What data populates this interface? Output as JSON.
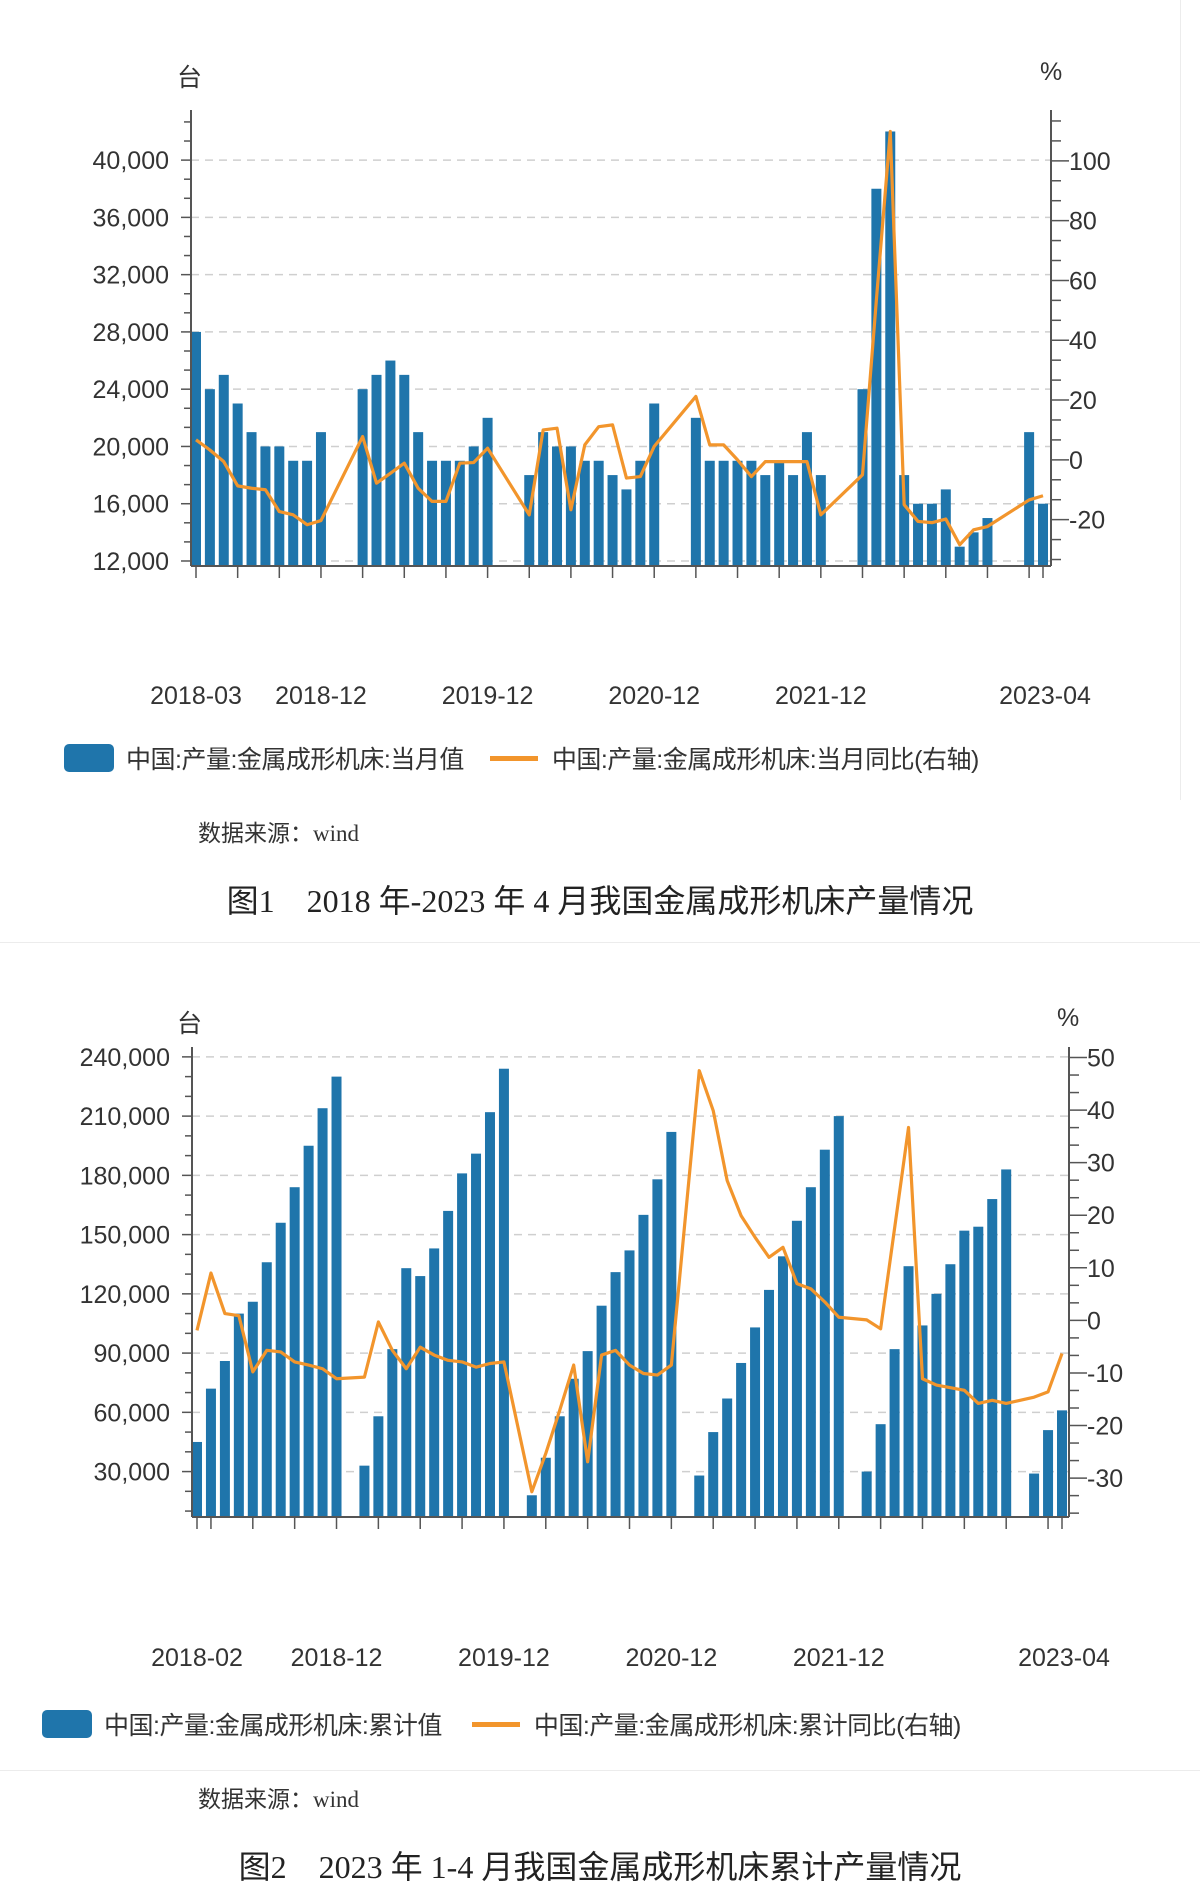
{
  "colors": {
    "bar": "#1f75ab",
    "line": "#f2952c",
    "grid": "#cfcfcf",
    "axis": "#555555"
  },
  "figure1": {
    "left_unit": "台",
    "right_unit": "%",
    "legend": {
      "bar": "中国:产量:金属成形机床:当月值",
      "line": "中国:产量:金属成形机床:当月同比(右轴)"
    },
    "source": "数据来源：wind",
    "caption": "图1　2018 年-2023 年 4 月我国金属成形机床产量情况"
  },
  "figure2": {
    "left_unit": "台",
    "right_unit": "%",
    "legend": {
      "bar": "中国:产量:金属成形机床:累计值",
      "line": "中国:产量:金属成形机床:累计同比(右轴)"
    },
    "source": "数据来源：wind",
    "caption": "图2　2023 年 1-4 月我国金属成形机床累计产量情况"
  },
  "chart_data": [
    {
      "type": "bar+line",
      "title": "",
      "ylabel": "台",
      "y2label": "%",
      "grid": true,
      "legend_position": "bottom",
      "ylim": [
        11650,
        43500
      ],
      "y2lim": [
        -35.5,
        117
      ],
      "yticks": [
        12000,
        16000,
        20000,
        24000,
        28000,
        32000,
        36000,
        40000
      ],
      "ytick_labels": [
        "12,000",
        "16,000",
        "20,000",
        "24,000",
        "28,000",
        "32,000",
        "36,000",
        "40,000"
      ],
      "y2ticks": [
        -20,
        0,
        20,
        40,
        60,
        80,
        100
      ],
      "y2tick_labels": [
        "-20",
        "0",
        "20",
        "40",
        "60",
        "80",
        "100"
      ],
      "x_range": [
        "2018-03",
        "2023-04"
      ],
      "xtick_labels": [
        {
          "date": "2018-03",
          "label": "2018-03"
        },
        {
          "date": "2018-12",
          "label": "2018-12"
        },
        {
          "date": "2019-12",
          "label": "2019-12"
        },
        {
          "date": "2020-12",
          "label": "2020-12"
        },
        {
          "date": "2021-12",
          "label": "2021-12"
        },
        {
          "date": "2023-04",
          "label": "2023-04"
        }
      ],
      "x": [
        "2018-03",
        "2018-04",
        "2018-05",
        "2018-06",
        "2018-07",
        "2018-08",
        "2018-09",
        "2018-10",
        "2018-11",
        "2018-12",
        "2019-03",
        "2019-04",
        "2019-05",
        "2019-06",
        "2019-07",
        "2019-08",
        "2019-09",
        "2019-10",
        "2019-11",
        "2019-12",
        "2020-03",
        "2020-04",
        "2020-05",
        "2020-06",
        "2020-07",
        "2020-08",
        "2020-09",
        "2020-10",
        "2020-11",
        "2020-12",
        "2021-03",
        "2021-04",
        "2021-05",
        "2021-06",
        "2021-07",
        "2021-08",
        "2021-09",
        "2021-10",
        "2021-11",
        "2021-12",
        "2022-03",
        "2022-04",
        "2022-05",
        "2022-06",
        "2022-07",
        "2022-08",
        "2022-09",
        "2022-10",
        "2022-11",
        "2022-12",
        "2023-03",
        "2023-04"
      ],
      "series": [
        {
          "name": "中国:产量:金属成形机床:当月值",
          "type": "bar",
          "axis": "left",
          "values": [
            28000,
            24000,
            25000,
            23000,
            21000,
            20000,
            20000,
            19000,
            19000,
            21000,
            24000,
            25000,
            26000,
            25000,
            21000,
            19000,
            19000,
            19000,
            20000,
            22000,
            18000,
            21000,
            20000,
            20000,
            19000,
            19000,
            18000,
            17000,
            19000,
            23000,
            22000,
            19000,
            19000,
            19000,
            19000,
            18000,
            19000,
            18000,
            21000,
            18000,
            24000,
            38000,
            42000,
            18000,
            16000,
            16000,
            17000,
            13000,
            14000,
            15000,
            21000,
            16000
          ]
        },
        {
          "name": "中国:产量:金属成形机床:当月同比(右轴)",
          "type": "line",
          "axis": "right",
          "values": [
            6.7,
            3.3,
            -0.6,
            -8.7,
            -9.5,
            -10,
            -17.3,
            -18.4,
            -21.7,
            -20.3,
            7.8,
            -7.8,
            -4.5,
            -1.1,
            -9.5,
            -13.9,
            -13.9,
            -1.1,
            -0.9,
            3.9,
            -18.4,
            10,
            10.6,
            -16.7,
            5,
            11.1,
            11.7,
            -6.1,
            -5.6,
            4.5,
            21.2,
            5,
            5,
            0,
            -5.6,
            -0.6,
            -0.6,
            -0.6,
            -0.6,
            -18.4,
            -5,
            53.5,
            109.8,
            -15,
            -20.6,
            -21,
            -19.8,
            -28.4,
            -23.4,
            -22.3,
            -13.4,
            -12
          ]
        }
      ]
    },
    {
      "type": "bar+line",
      "title": "",
      "ylabel": "台",
      "y2label": "%",
      "grid": true,
      "legend_position": "bottom",
      "ylim": [
        7000,
        245000
      ],
      "y2lim": [
        -37.4,
        52
      ],
      "yticks": [
        30000,
        60000,
        90000,
        120000,
        150000,
        180000,
        210000,
        240000
      ],
      "ytick_labels": [
        "30,000",
        "60,000",
        "90,000",
        "120,000",
        "150,000",
        "180,000",
        "210,000",
        "240,000"
      ],
      "y2ticks": [
        -30,
        -20,
        -10,
        0,
        10,
        20,
        30,
        40,
        50
      ],
      "y2tick_labels": [
        "-30",
        "-20",
        "-10",
        "0",
        "10",
        "20",
        "30",
        "40",
        "50"
      ],
      "x_range": [
        "2018-02",
        "2023-04"
      ],
      "xtick_labels": [
        {
          "date": "2018-02",
          "label": "2018-02"
        },
        {
          "date": "2018-12",
          "label": "2018-12"
        },
        {
          "date": "2019-12",
          "label": "2019-12"
        },
        {
          "date": "2020-12",
          "label": "2020-12"
        },
        {
          "date": "2021-12",
          "label": "2021-12"
        },
        {
          "date": "2023-04",
          "label": "2023-04"
        }
      ],
      "x": [
        "2018-02",
        "2018-03",
        "2018-04",
        "2018-05",
        "2018-06",
        "2018-07",
        "2018-08",
        "2018-09",
        "2018-10",
        "2018-11",
        "2018-12",
        "2019-02",
        "2019-03",
        "2019-04",
        "2019-05",
        "2019-06",
        "2019-07",
        "2019-08",
        "2019-09",
        "2019-10",
        "2019-11",
        "2019-12",
        "2020-02",
        "2020-03",
        "2020-04",
        "2020-05",
        "2020-06",
        "2020-07",
        "2020-08",
        "2020-09",
        "2020-10",
        "2020-11",
        "2020-12",
        "2021-02",
        "2021-03",
        "2021-04",
        "2021-05",
        "2021-06",
        "2021-07",
        "2021-08",
        "2021-09",
        "2021-10",
        "2021-11",
        "2021-12",
        "2022-02",
        "2022-03",
        "2022-04",
        "2022-05",
        "2022-06",
        "2022-07",
        "2022-08",
        "2022-09",
        "2022-10",
        "2022-11",
        "2022-12",
        "2023-02",
        "2023-03",
        "2023-04"
      ],
      "series": [
        {
          "name": "中国:产量:金属成形机床:累计值",
          "type": "bar",
          "axis": "left",
          "values": [
            45000,
            72000,
            86000,
            110000,
            116000,
            136000,
            156000,
            174000,
            195000,
            214000,
            230000,
            33000,
            58000,
            92000,
            133000,
            129000,
            143000,
            162000,
            181000,
            191000,
            212000,
            234000,
            18000,
            37000,
            58000,
            77000,
            91000,
            114000,
            131000,
            142000,
            160000,
            178000,
            202000,
            28000,
            50000,
            67000,
            85000,
            103000,
            122000,
            139000,
            157000,
            174000,
            193000,
            210000,
            30000,
            54000,
            92000,
            134000,
            104000,
            120000,
            135000,
            152000,
            154000,
            168000,
            183000,
            29000,
            51000,
            61000
          ]
        },
        {
          "name": "中国:产量:金属成形机床:累计同比(右轴)",
          "type": "line",
          "axis": "right",
          "values": [
            -1.9,
            9.0,
            1.3,
            0.9,
            -9.8,
            -5.7,
            -6.0,
            -7.9,
            -8.5,
            -9.2,
            -11.1,
            -10.8,
            -0.3,
            -5.7,
            -9.2,
            -5.1,
            -6.6,
            -7.6,
            -7.9,
            -8.9,
            -8.2,
            -7.9,
            -32.6,
            -25.3,
            -17.1,
            -8.5,
            -26.9,
            -6.6,
            -5.7,
            -8.5,
            -10.1,
            -10.4,
            -8.5,
            47.5,
            39.9,
            26.6,
            19.9,
            15.8,
            12.0,
            13.9,
            7.0,
            6.0,
            3.5,
            0.6,
            0.1,
            -1.6,
            17.5,
            36.7,
            -11.1,
            -12.3,
            -12.8,
            -13.3,
            -15.8,
            -15.2,
            -15.8,
            -14.6,
            -13.6,
            -6.3
          ]
        }
      ]
    }
  ]
}
